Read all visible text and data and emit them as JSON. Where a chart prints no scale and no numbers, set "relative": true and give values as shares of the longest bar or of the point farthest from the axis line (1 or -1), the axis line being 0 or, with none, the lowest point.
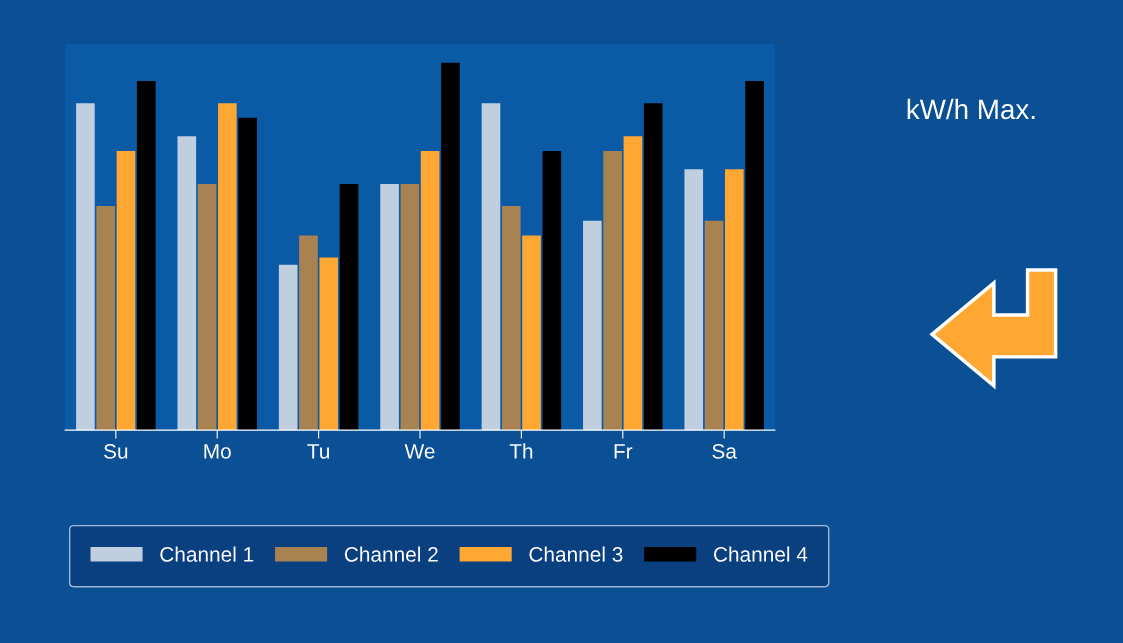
{
  "chart_data": {
    "type": "bar",
    "title": "kW/h Max.",
    "relative": true,
    "legend": "bottom",
    "categories": [
      "Su",
      "Mo",
      "Tu",
      "We",
      "Th",
      "Fr",
      "Sa"
    ],
    "series": [
      {
        "name": "Channel 1",
        "color": "#c0cfe0",
        "values": [
          0.89,
          0.8,
          0.45,
          0.67,
          0.89,
          0.57,
          0.71
        ]
      },
      {
        "name": "Channel 2",
        "color": "#a88250",
        "values": [
          0.61,
          0.67,
          0.53,
          0.67,
          0.61,
          0.76,
          0.57
        ]
      },
      {
        "name": "Channel 3",
        "color": "#ffa733",
        "values": [
          0.76,
          0.89,
          0.47,
          0.76,
          0.53,
          0.8,
          0.71
        ]
      },
      {
        "name": "Channel 4",
        "color": "#000000",
        "values": [
          0.95,
          0.85,
          0.67,
          1,
          0.76,
          0.89,
          0.95
        ]
      }
    ]
  }
}
